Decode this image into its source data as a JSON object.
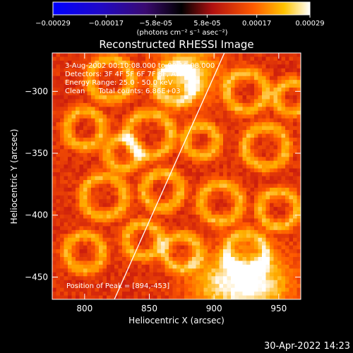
{
  "chart_data": {
    "type": "heatmap",
    "title": "Reconstructed RHESSI Image",
    "xlabel": "Heliocentric X (arcsec)",
    "ylabel": "Heliocentric Y (arcsec)",
    "xlim": [
      775,
      967
    ],
    "ylim": [
      -468,
      -269
    ],
    "xticks": [
      800,
      850,
      900,
      950
    ],
    "yticks": [
      -300,
      -350,
      -400,
      -450
    ],
    "colorbar": {
      "min": -0.00029,
      "max": 0.00029,
      "tick_values": [
        -0.00029,
        -0.00017,
        -5.8e-05,
        5.8e-05,
        0.00017,
        0.00029
      ],
      "tick_labels": [
        "-0.00029",
        "-0.00017",
        "-5.8e-05",
        "5.8e-05",
        "0.00017",
        "0.00029"
      ],
      "label": "(photons cm⁻² s⁻¹ asec⁻²)",
      "colormap": [
        "#0000ff",
        "#000000",
        "#5a1a8a",
        "#c01010",
        "#ff5a00",
        "#ffb000",
        "#ffffff"
      ]
    },
    "annotations": [
      "3-Aug-2002 00:10:08.000 to 00:16:08.000",
      "Detectors: 3F 4F 5F 6F 7F 8F, Att 1",
      "Energy Range: 25.0 - 50.0 keV",
      "Clean      Total counts: 6.86E+03"
    ],
    "peak_label": "Position of Peak = [894,-453]",
    "peak": [
      894,
      -453
    ],
    "limb_line": [
      [
        823,
        -468
      ],
      [
        908,
        -269
      ]
    ]
  },
  "timestamp": "30-Apr-2022 14:23"
}
